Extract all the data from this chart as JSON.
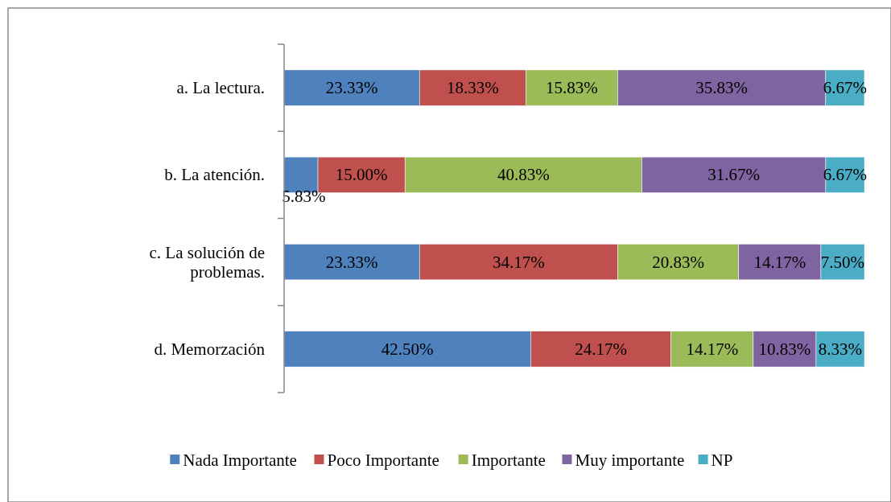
{
  "chart_data": {
    "type": "bar",
    "orientation": "horizontal",
    "stacked": true,
    "legend": "bottom",
    "categories": [
      "a. La lectura.",
      "b. La atención.",
      "c. La solución de problemas.",
      "d. Memorzación"
    ],
    "series": [
      {
        "name": "Nada Importante",
        "color": "#4f81bd",
        "values": [
          23.33,
          5.83,
          23.33,
          42.5
        ],
        "value_labels": [
          "23.33%",
          "5.83%",
          "23.33%",
          "42.50%"
        ]
      },
      {
        "name": "Poco Importante",
        "color": "#c0504d",
        "values": [
          18.33,
          15.0,
          34.17,
          24.17
        ],
        "value_labels": [
          "18.33%",
          "15.00%",
          "34.17%",
          "24.17%"
        ]
      },
      {
        "name": "Importante",
        "color": "#9bbb59",
        "values": [
          15.83,
          40.83,
          20.83,
          14.17
        ],
        "value_labels": [
          "15.83%",
          "40.83%",
          "20.83%",
          "14.17%"
        ]
      },
      {
        "name": "Muy importante",
        "color": "#8064a2",
        "values": [
          35.83,
          31.67,
          14.17,
          10.83
        ],
        "value_labels": [
          "35.83%",
          "31.67%",
          "14.17%",
          "10.83%"
        ]
      },
      {
        "name": "NP",
        "color": "#4bacc6",
        "values": [
          6.67,
          6.67,
          7.5,
          8.33
        ],
        "value_labels": [
          "6.67%",
          "6.67%",
          "7.50%",
          "8.33%"
        ]
      }
    ]
  }
}
